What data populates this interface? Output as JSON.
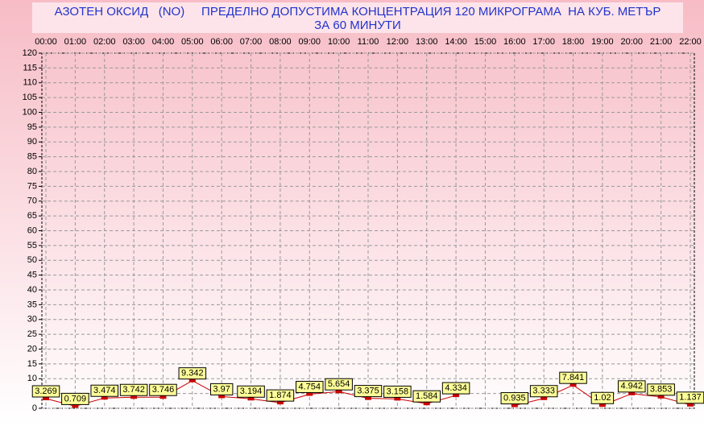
{
  "chart_data": {
    "type": "line",
    "title": "АЗОТЕН ОКСИД   (NO)     ПРЕДЕЛНО ДОПУСТИМА КОНЦЕНТРАЦИЯ 120 МИКРОГРАМА  НА КУБ. МЕТЪР",
    "subtitle": "ЗА 60 МИНУТИ",
    "categories": [
      "00:00",
      "01:00",
      "02:00",
      "03:00",
      "04:00",
      "05:00",
      "06:00",
      "07:00",
      "08:00",
      "09:00",
      "10:00",
      "11:00",
      "12:00",
      "13:00",
      "14:00",
      "15:00",
      "16:00",
      "17:00",
      "18:00",
      "19:00",
      "20:00",
      "21:00",
      "22:00"
    ],
    "values": [
      3.269,
      0.709,
      3.474,
      3.742,
      3.746,
      9.342,
      3.97,
      3.194,
      1.874,
      4.754,
      5.654,
      3.375,
      3.158,
      1.584,
      4.334,
      null,
      0.935,
      3.333,
      7.841,
      1.02,
      4.942,
      3.853,
      1.137
    ],
    "color": "#cc0000",
    "ylim": [
      0,
      120
    ],
    "yticks": [
      0,
      5,
      10,
      15,
      20,
      25,
      30,
      35,
      40,
      45,
      50,
      55,
      60,
      65,
      70,
      75,
      80,
      85,
      90,
      95,
      100,
      105,
      110,
      115,
      120
    ],
    "grid": true
  }
}
